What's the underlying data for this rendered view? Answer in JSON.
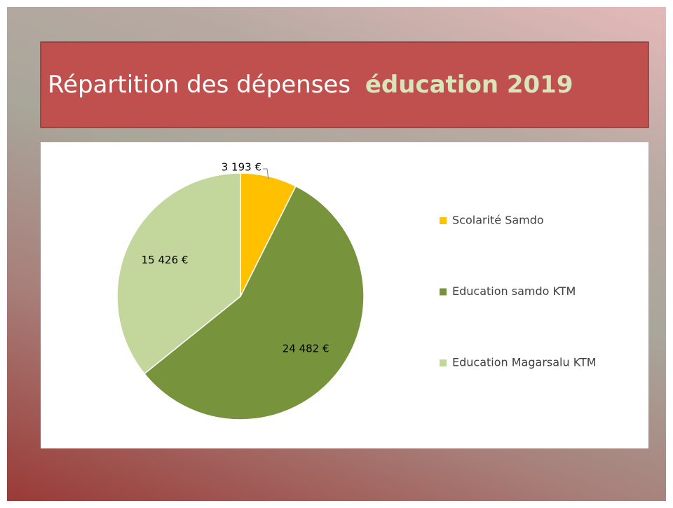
{
  "chart_data": {
    "type": "pie",
    "title": "Répartition des dépenses",
    "title_highlight": "éducation 2019",
    "categories": [
      "Scolarité Samdo",
      "Education samdo KTM",
      "Education Magarsalu KTM"
    ],
    "values": [
      3193,
      24482,
      15426
    ],
    "value_labels": [
      "3 193 €",
      "24 482 €",
      "15 426 €"
    ],
    "colors": [
      "#ffc000",
      "#77933c",
      "#c3d69b"
    ],
    "legend": "right"
  }
}
